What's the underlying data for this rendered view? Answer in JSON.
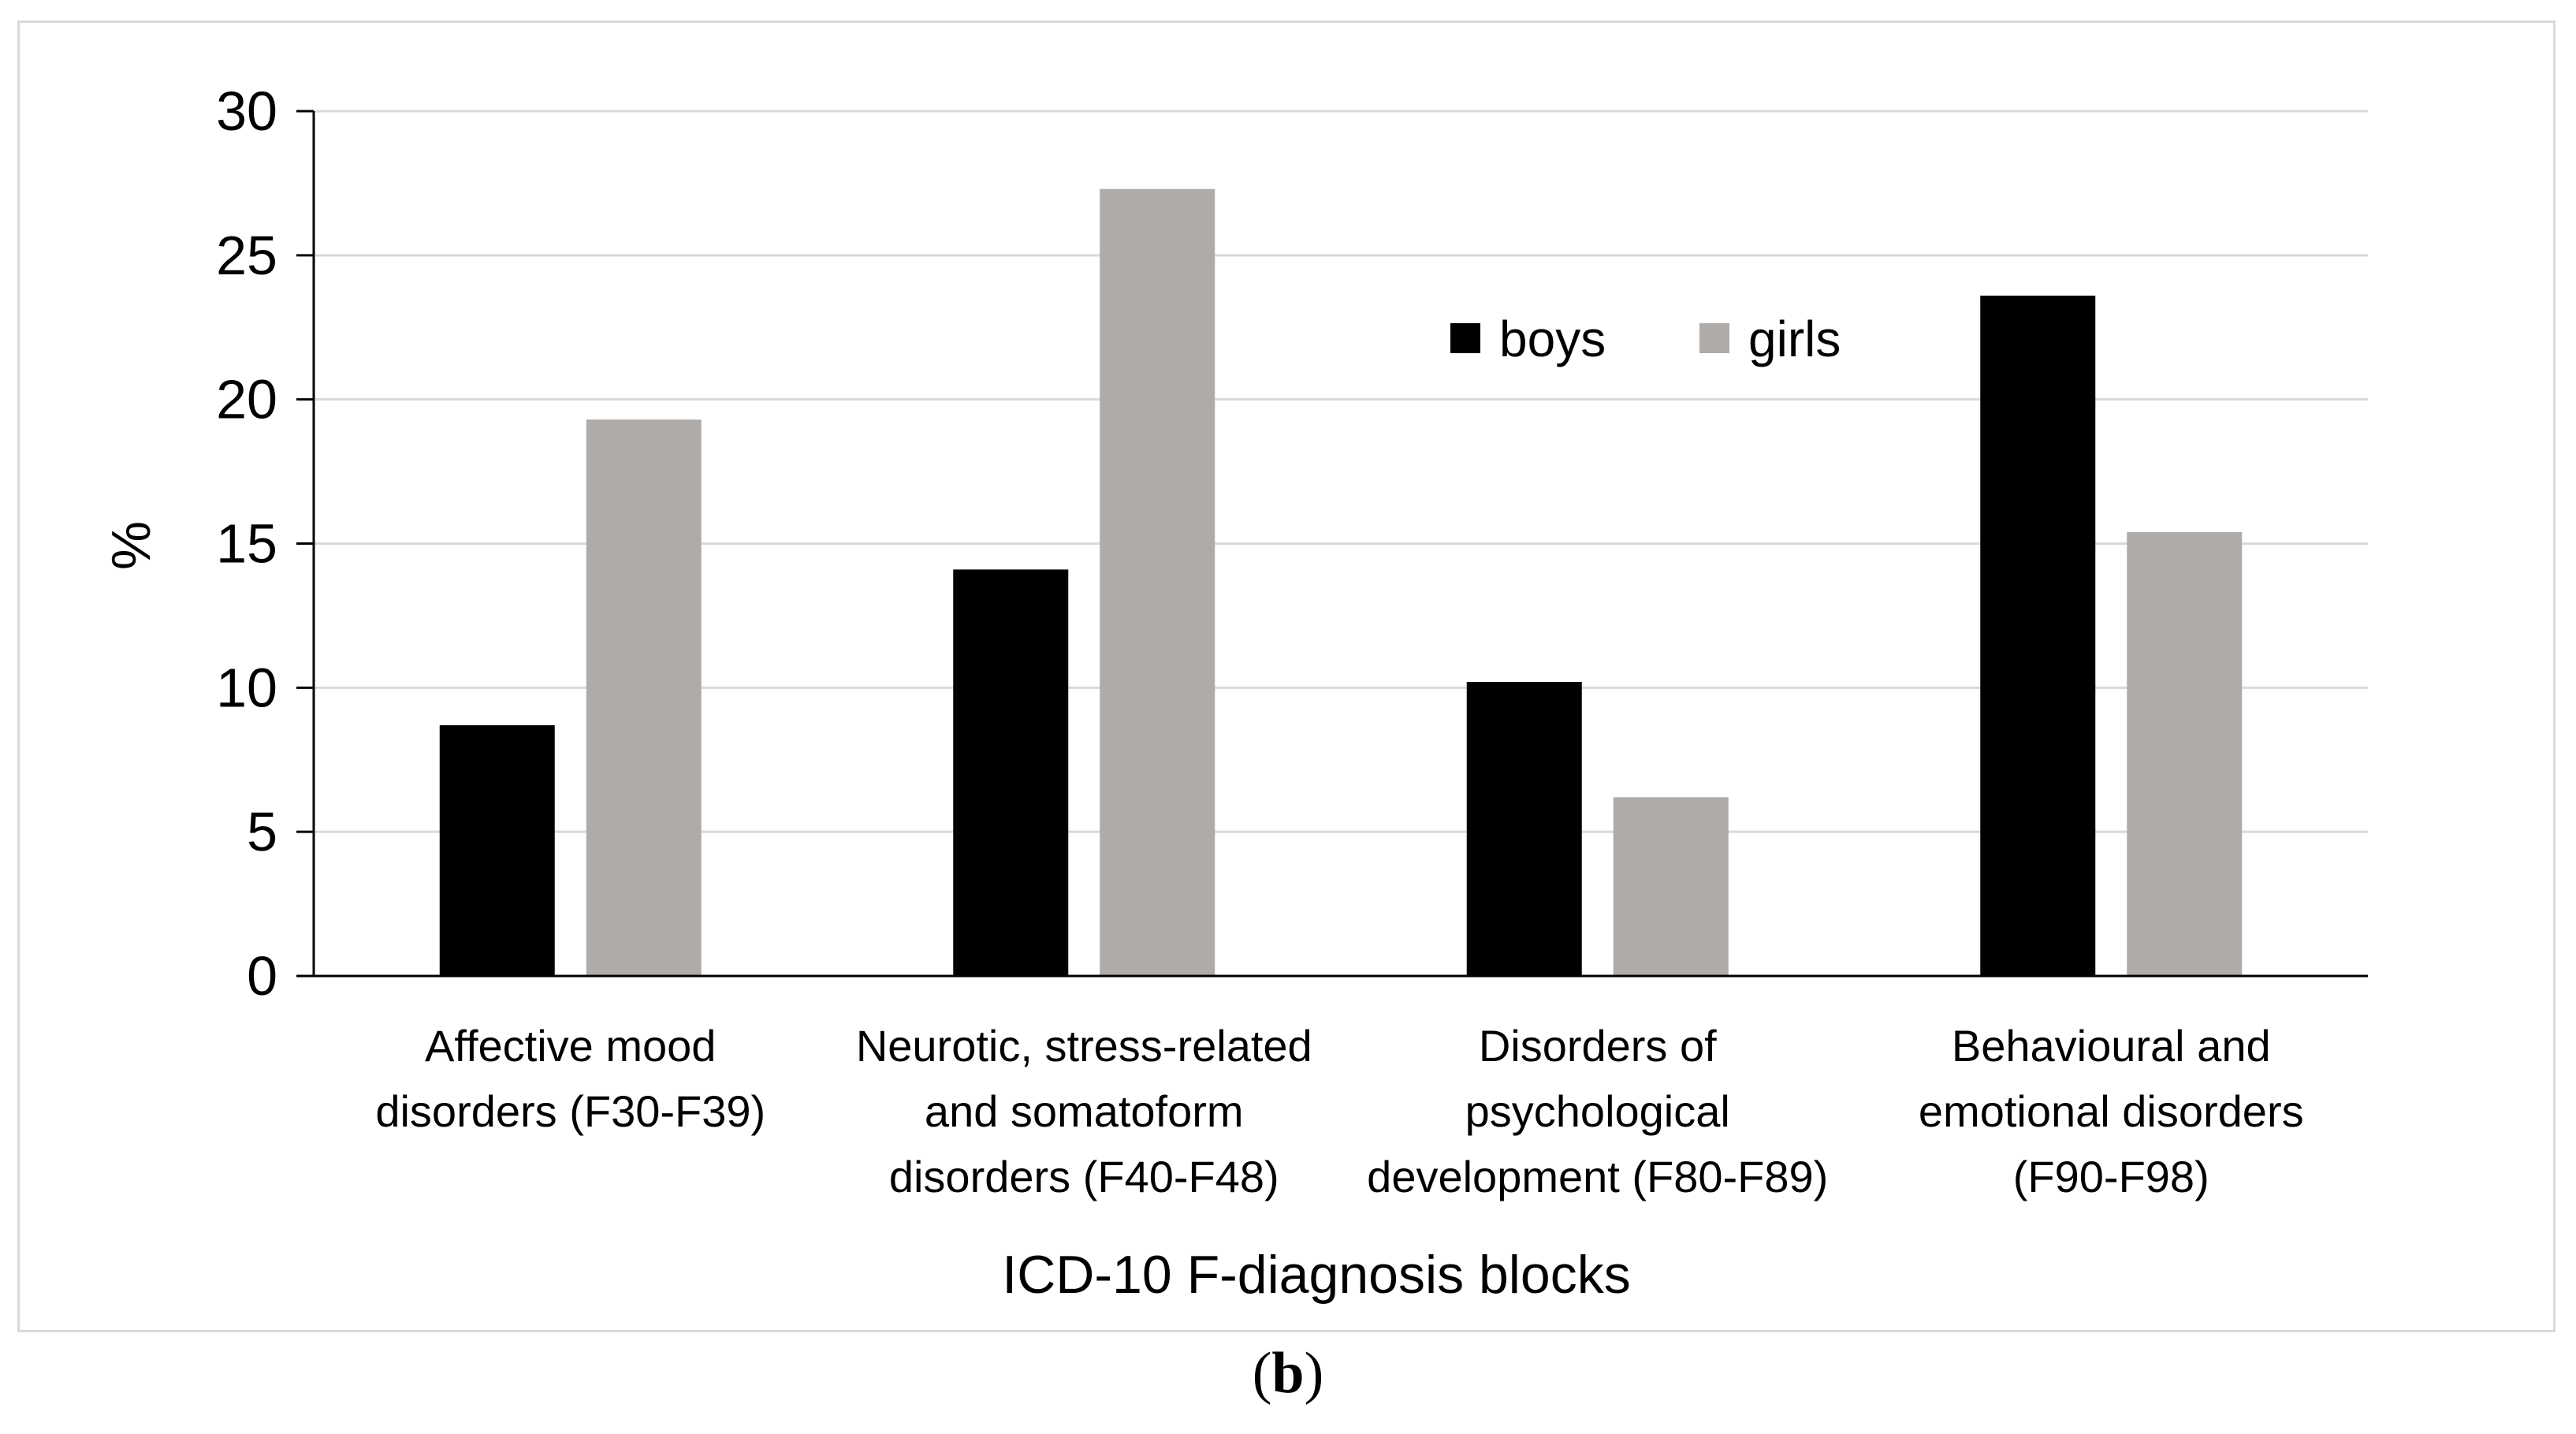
{
  "chart_data": {
    "type": "bar",
    "title": "",
    "xlabel": "ICD-10 F-diagnosis blocks",
    "ylabel": "%",
    "ylim": [
      0,
      30
    ],
    "yticks": [
      "0",
      "5",
      "10",
      "15",
      "20",
      "25",
      "30"
    ],
    "grid": true,
    "legend_position": "top-center",
    "categories": [
      [
        "Affective mood",
        "disorders (F30-F39)"
      ],
      [
        "Neurotic, stress-related",
        "and somatoform",
        "disorders (F40-F48)"
      ],
      [
        "Disorders of",
        "psychological",
        "development (F80-F89)"
      ],
      [
        "Behavioural and",
        "emotional disorders",
        "(F90-F98)"
      ]
    ],
    "series": [
      {
        "name": "boys",
        "color": "#000000",
        "values": [
          8.7,
          14.1,
          10.2,
          23.6
        ]
      },
      {
        "name": "girls",
        "color": "#afaba8",
        "values": [
          19.3,
          27.3,
          6.2,
          15.4
        ]
      }
    ]
  },
  "panel_label": {
    "open": "(",
    "letter": "b",
    "close": ")"
  }
}
